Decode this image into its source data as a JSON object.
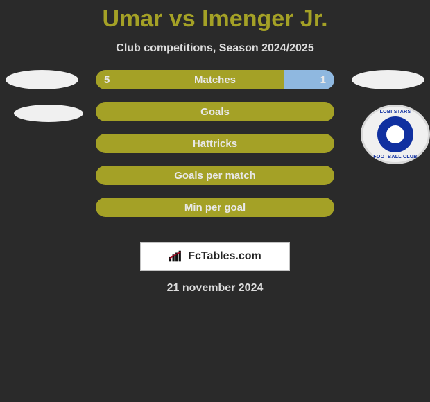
{
  "header": {
    "title": "Umar vs Imenger Jr.",
    "title_color": "#a4a126",
    "title_fontsize": 34
  },
  "subtitle": "Club competitions, Season 2024/2025",
  "colors": {
    "left_bar": "#a4a126",
    "right_bar": "#8fb8e0",
    "full_bar": "#a4a126",
    "text": "#e8e8e8",
    "background": "#2a2a2a"
  },
  "rows": [
    {
      "label": "Matches",
      "left": "5",
      "right": "1",
      "left_pct": 79,
      "right_pct": 21,
      "show_vals": true
    },
    {
      "label": "Goals",
      "left": "",
      "right": "",
      "left_pct": 100,
      "right_pct": 0,
      "show_vals": false
    },
    {
      "label": "Hattricks",
      "left": "",
      "right": "",
      "left_pct": 100,
      "right_pct": 0,
      "show_vals": false
    },
    {
      "label": "Goals per match",
      "left": "",
      "right": "",
      "left_pct": 100,
      "right_pct": 0,
      "show_vals": false
    },
    {
      "label": "Min per goal",
      "left": "",
      "right": "",
      "left_pct": 100,
      "right_pct": 0,
      "show_vals": false
    }
  ],
  "right_club": {
    "top_text": "LOBI STARS",
    "bottom_text": "FOOTBALL CLUB"
  },
  "footer": {
    "brand": "FcTables.com"
  },
  "date": "21 november 2024"
}
